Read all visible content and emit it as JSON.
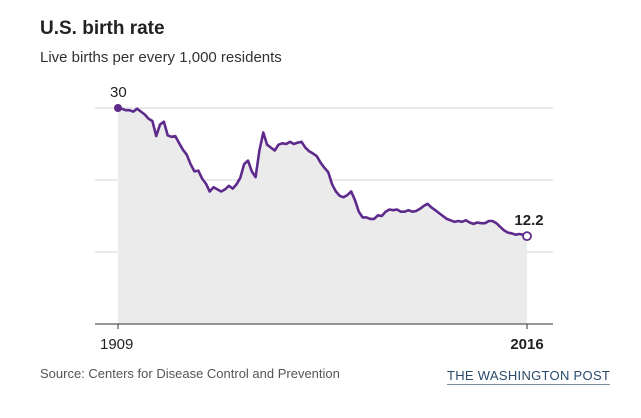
{
  "header": {
    "title": "U.S. birth rate",
    "subtitle": "Live births per every 1,000 residents"
  },
  "footer": {
    "source": "Source: Centers for Disease Control and Prevention",
    "credit": "THE WASHINGTON POST"
  },
  "chart_data": {
    "type": "area",
    "title": "U.S. birth rate",
    "subtitle": "Live births per every 1,000 residents",
    "xlabel": "",
    "ylabel": "",
    "xlim": [
      1909,
      2016
    ],
    "ylim": [
      0,
      30
    ],
    "grid": true,
    "x_tick_labels": [
      "1909",
      "2016"
    ],
    "annotations": [
      {
        "x": 1909,
        "y": 30,
        "label": "30"
      },
      {
        "x": 2016,
        "y": 12.2,
        "label": "12.2"
      }
    ],
    "colors": {
      "line": "#5e2a8c",
      "fill": "#ebebeb",
      "grid": "#d4d4d4",
      "axis": "#333333"
    },
    "series": [
      {
        "x": [
          1909,
          1910,
          1911,
          1912,
          1913,
          1914,
          1915,
          1916,
          1917,
          1918,
          1919,
          1920,
          1921,
          1922,
          1923,
          1924,
          1925,
          1926,
          1927,
          1928,
          1929,
          1930,
          1931,
          1932,
          1933,
          1934,
          1935,
          1936,
          1937,
          1938,
          1939,
          1940,
          1941,
          1942,
          1943,
          1944,
          1945,
          1946,
          1947,
          1948,
          1949,
          1950,
          1951,
          1952,
          1953,
          1954,
          1955,
          1956,
          1957,
          1958,
          1959,
          1960,
          1961,
          1962,
          1963,
          1964,
          1965,
          1966,
          1967,
          1968,
          1969,
          1970,
          1971,
          1972,
          1973,
          1974,
          1975,
          1976,
          1977,
          1978,
          1979,
          1980,
          1981,
          1982,
          1983,
          1984,
          1985,
          1986,
          1987,
          1988,
          1989,
          1990,
          1991,
          1992,
          1993,
          1994,
          1995,
          1996,
          1997,
          1998,
          1999,
          2000,
          2001,
          2002,
          2003,
          2004,
          2005,
          2006,
          2007,
          2008,
          2009,
          2010,
          2011,
          2012,
          2013,
          2014,
          2015,
          2016
        ],
        "values": [
          30.0,
          29.9,
          29.7,
          29.7,
          29.5,
          29.9,
          29.5,
          29.1,
          28.5,
          28.2,
          26.1,
          27.7,
          28.1,
          26.2,
          26.0,
          26.1,
          25.1,
          24.2,
          23.5,
          22.2,
          21.2,
          21.3,
          20.2,
          19.5,
          18.4,
          19.0,
          18.7,
          18.4,
          18.7,
          19.2,
          18.8,
          19.4,
          20.3,
          22.2,
          22.7,
          21.2,
          20.4,
          24.1,
          26.6,
          24.9,
          24.5,
          24.1,
          24.9,
          25.1,
          25.0,
          25.3,
          25.0,
          25.2,
          25.3,
          24.5,
          24.0,
          23.7,
          23.3,
          22.4,
          21.7,
          21.1,
          19.4,
          18.4,
          17.8,
          17.6,
          17.9,
          18.4,
          17.2,
          15.6,
          14.8,
          14.8,
          14.6,
          14.6,
          15.1,
          15.0,
          15.6,
          15.9,
          15.8,
          15.9,
          15.6,
          15.6,
          15.8,
          15.6,
          15.7,
          16.0,
          16.4,
          16.7,
          16.2,
          15.8,
          15.4,
          15.0,
          14.6,
          14.4,
          14.2,
          14.3,
          14.2,
          14.4,
          14.1,
          13.9,
          14.1,
          14.0,
          14.0,
          14.3,
          14.3,
          14.0,
          13.5,
          13.0,
          12.7,
          12.6,
          12.4,
          12.5,
          12.4,
          12.2
        ]
      }
    ]
  }
}
